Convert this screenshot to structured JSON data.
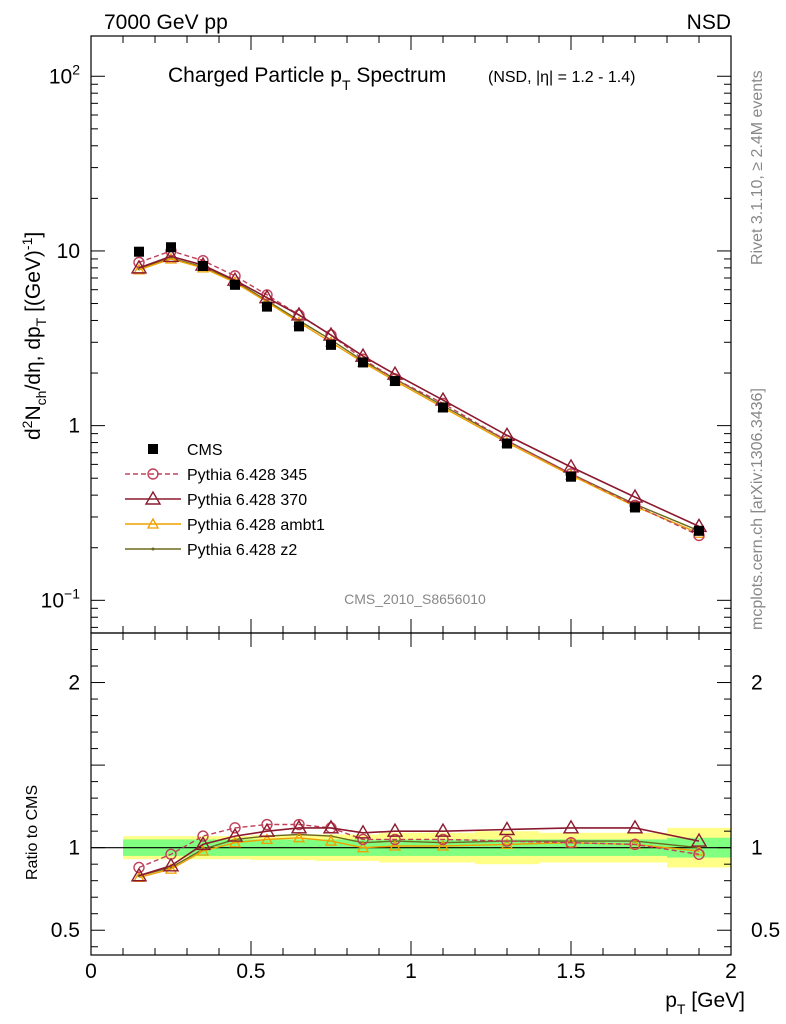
{
  "header": {
    "energy": "7000 GeV pp",
    "process": "NSD"
  },
  "title": {
    "main": "Charged Particle p",
    "main_sub": "T",
    "main_suffix": " Spectrum",
    "selection": "(NSD, |η| = 1.2 - 1.4)"
  },
  "side": {
    "rivet": "Rivet 3.1.10, ≥ 2.4M events",
    "mcplots": "mcplots.cern.ch [arXiv:1306.3436]"
  },
  "analysis_id": "CMS_2010_S8656010",
  "colors": {
    "data": "#000000",
    "p345": "#c0405a",
    "p370": "#8b1a2e",
    "ambt1": "#f0a000",
    "z2": "#6b6b1e",
    "band_inner": "#80ff80",
    "band_outer": "#ffff88"
  },
  "chart_data": [
    {
      "type": "line",
      "ylabel": "d²N_ch/dη, dp_T [(GeV)⁻¹]",
      "yscale": "log",
      "ylim": [
        0.065,
        170
      ],
      "xlim": [
        0,
        2
      ],
      "yticks": [
        {
          "v": 0.1,
          "base": "10",
          "exp": "−1"
        },
        {
          "v": 1,
          "base": "1",
          "exp": ""
        },
        {
          "v": 10,
          "base": "10",
          "exp": ""
        },
        {
          "v": 100,
          "base": "10",
          "exp": "2"
        }
      ],
      "x": [
        0.15,
        0.25,
        0.35,
        0.45,
        0.55,
        0.65,
        0.75,
        0.85,
        0.95,
        1.1,
        1.3,
        1.5,
        1.7,
        1.9
      ],
      "legend_position": "lower-left",
      "series": [
        {
          "name": "CMS",
          "key": "data",
          "values": [
            9.9,
            10.5,
            8.2,
            6.4,
            4.8,
            3.7,
            2.9,
            2.3,
            1.8,
            1.27,
            0.79,
            0.51,
            0.34,
            0.25
          ]
        },
        {
          "name": "Pythia 6.428 345",
          "key": "p345",
          "values": [
            8.6,
            10.0,
            8.8,
            7.2,
            5.6,
            4.3,
            3.3,
            2.4,
            1.85,
            1.34,
            0.82,
            0.53,
            0.35,
            0.235
          ]
        },
        {
          "name": "Pythia 6.428 370",
          "key": "p370",
          "values": [
            8.0,
            9.3,
            8.3,
            6.8,
            5.4,
            4.3,
            3.3,
            2.5,
            1.97,
            1.4,
            0.88,
            0.58,
            0.39,
            0.265
          ]
        },
        {
          "name": "Pythia 6.428 ambt1",
          "key": "ambt1",
          "values": [
            7.8,
            9.0,
            8.0,
            6.6,
            5.1,
            3.9,
            3.0,
            2.3,
            1.8,
            1.27,
            0.8,
            0.52,
            0.345,
            0.242
          ]
        },
        {
          "name": "Pythia 6.428 z2",
          "key": "z2",
          "values": [
            7.9,
            9.1,
            8.1,
            6.7,
            5.2,
            4.0,
            3.1,
            2.35,
            1.85,
            1.3,
            0.82,
            0.53,
            0.355,
            0.25
          ]
        }
      ]
    },
    {
      "type": "line",
      "ylabel": "Ratio to CMS",
      "xlabel": "p_T [GeV]",
      "ylim": [
        0.35,
        2.3
      ],
      "xlim": [
        0,
        2
      ],
      "yticks": [
        0.5,
        1,
        2
      ],
      "xticks": [
        0,
        0.5,
        1,
        1.5,
        2
      ],
      "bins": [
        [
          0.1,
          0.2
        ],
        [
          0.2,
          0.3
        ],
        [
          0.3,
          0.4
        ],
        [
          0.4,
          0.5
        ],
        [
          0.5,
          0.6
        ],
        [
          0.6,
          0.7
        ],
        [
          0.7,
          0.8
        ],
        [
          0.8,
          0.9
        ],
        [
          0.9,
          1.0
        ],
        [
          1.0,
          1.2
        ],
        [
          1.2,
          1.4
        ],
        [
          1.4,
          1.6
        ],
        [
          1.6,
          1.8
        ],
        [
          1.8,
          2.0
        ]
      ],
      "band_inner": [
        0.05,
        0.05,
        0.05,
        0.05,
        0.05,
        0.05,
        0.05,
        0.05,
        0.05,
        0.05,
        0.05,
        0.05,
        0.05,
        0.06
      ],
      "band_outer": [
        0.07,
        0.07,
        0.07,
        0.07,
        0.075,
        0.075,
        0.08,
        0.08,
        0.09,
        0.09,
        0.1,
        0.09,
        0.09,
        0.12
      ],
      "x": [
        0.15,
        0.25,
        0.35,
        0.45,
        0.55,
        0.65,
        0.75,
        0.85,
        0.95,
        1.1,
        1.3,
        1.5,
        1.7,
        1.9
      ],
      "series": [
        {
          "name": "Pythia 6.428 345",
          "key": "p345",
          "values": [
            0.88,
            0.96,
            1.07,
            1.12,
            1.14,
            1.14,
            1.12,
            1.05,
            1.05,
            1.05,
            1.04,
            1.03,
            1.02,
            0.96
          ]
        },
        {
          "name": "Pythia 6.428 370",
          "key": "p370",
          "values": [
            0.83,
            0.89,
            1.02,
            1.07,
            1.1,
            1.12,
            1.12,
            1.09,
            1.1,
            1.1,
            1.11,
            1.12,
            1.12,
            1.04
          ]
        },
        {
          "name": "Pythia 6.428 ambt1",
          "key": "ambt1",
          "values": [
            0.82,
            0.87,
            0.98,
            1.03,
            1.05,
            1.06,
            1.04,
            1.0,
            1.01,
            1.01,
            1.02,
            1.03,
            1.02,
            0.98
          ]
        },
        {
          "name": "Pythia 6.428 z2",
          "key": "z2",
          "values": [
            0.83,
            0.88,
            0.99,
            1.05,
            1.07,
            1.08,
            1.07,
            1.03,
            1.04,
            1.03,
            1.04,
            1.04,
            1.04,
            1.0
          ]
        }
      ]
    }
  ]
}
